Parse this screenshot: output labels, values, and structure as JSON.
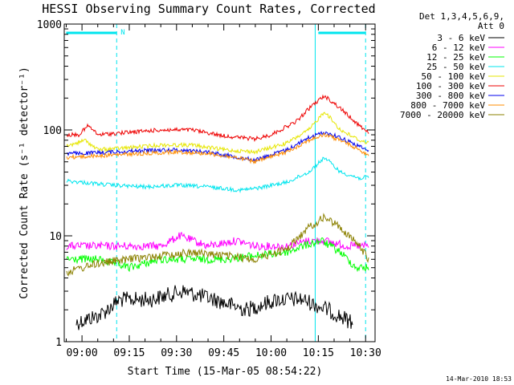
{
  "chart_data": {
    "type": "line",
    "title": "HESSI Observing Summary Count Rates, Corrected",
    "xlabel": "Start Time (15-Mar-05 08:54:22)",
    "ylabel": "Corrected Count Rate (s⁻¹ detector⁻¹)",
    "y_scale": "log",
    "ylim": [
      1,
      1000
    ],
    "y_ticks": [
      1,
      10,
      100,
      1000
    ],
    "y_tick_labels": [
      "1",
      "10",
      "100",
      "1000"
    ],
    "xlim": [
      "08:54:22",
      "10:33:00"
    ],
    "x_ticks": [
      "09:00",
      "09:15",
      "09:30",
      "09:45",
      "10:00",
      "10:15",
      "10:30"
    ],
    "legend": {
      "title_lines": [
        "Det 1,3,4,5,6,9,",
        "Att 0"
      ],
      "placement": "right-outside"
    },
    "annotations": {
      "night_label": "N",
      "bars": [
        {
          "start": "08:55",
          "end": "09:11",
          "color": "#00e5ee"
        },
        {
          "start": "10:15",
          "end": "10:30",
          "color": "#00e5ee"
        }
      ],
      "vlines": [
        {
          "time": "09:11",
          "style": "dashed",
          "color": "#00e5ee"
        },
        {
          "time": "10:14",
          "style": "solid",
          "color": "#00e5ee"
        },
        {
          "time": "10:30",
          "style": "dashed",
          "color": "#00e5ee"
        }
      ]
    },
    "series": [
      {
        "name": "3 - 6 keV",
        "color": "#000000",
        "x": [
          "08:58",
          "09:06",
          "09:12",
          "09:22",
          "09:32",
          "09:42",
          "09:52",
          "10:02",
          "10:10",
          "10:18",
          "10:26"
        ],
        "y": [
          1.5,
          1.8,
          2.5,
          2.5,
          3.0,
          2.5,
          2.0,
          2.5,
          2.5,
          2.0,
          1.5
        ]
      },
      {
        "name": "6 - 12 keV",
        "color": "#ff00ff",
        "x": [
          "08:55",
          "09:05",
          "09:15",
          "09:25",
          "09:31",
          "09:40",
          "09:49",
          "09:55",
          "10:05",
          "10:12",
          "10:17",
          "10:24",
          "10:31"
        ],
        "y": [
          8,
          8,
          8,
          8,
          10,
          8,
          9,
          8,
          8,
          9,
          9,
          8,
          8
        ]
      },
      {
        "name": "12 - 25 keV",
        "color": "#00ff00",
        "x": [
          "08:55",
          "09:05",
          "09:15",
          "09:25",
          "09:35",
          "09:45",
          "09:55",
          "10:05",
          "10:10",
          "10:16",
          "10:22",
          "10:27",
          "10:31"
        ],
        "y": [
          6,
          6,
          5,
          6,
          6,
          6,
          6.5,
          7,
          8,
          9,
          7,
          5,
          5
        ]
      },
      {
        "name": "25 - 50 keV",
        "color": "#00e5ee",
        "x": [
          "08:55",
          "09:00",
          "09:10",
          "09:20",
          "09:30",
          "09:40",
          "09:50",
          "09:55",
          "10:05",
          "10:12",
          "10:17",
          "10:22",
          "10:28",
          "10:31"
        ],
        "y": [
          33,
          32,
          30,
          29,
          30,
          29,
          27,
          28,
          32,
          40,
          55,
          40,
          35,
          36
        ]
      },
      {
        "name": "50 - 100 keV",
        "color": "#e6e600",
        "x": [
          "08:55",
          "09:01",
          "09:05",
          "09:15",
          "09:25",
          "09:35",
          "09:45",
          "09:55",
          "10:05",
          "10:12",
          "10:17",
          "10:22",
          "10:28",
          "10:31"
        ],
        "y": [
          70,
          80,
          65,
          68,
          72,
          72,
          65,
          62,
          75,
          100,
          150,
          100,
          80,
          75
        ]
      },
      {
        "name": "100 - 300 keV",
        "color": "#ee0000",
        "x": [
          "08:55",
          "08:59",
          "09:02",
          "09:05",
          "09:15",
          "09:25",
          "09:35",
          "09:45",
          "09:55",
          "10:00",
          "10:08",
          "10:13",
          "10:17",
          "10:22",
          "10:28",
          "10:31"
        ],
        "y": [
          90,
          90,
          110,
          90,
          95,
          100,
          100,
          88,
          82,
          90,
          120,
          170,
          210,
          160,
          110,
          95
        ]
      },
      {
        "name": "300 - 800 keV",
        "color": "#0000ee",
        "x": [
          "08:55",
          "09:00",
          "09:10",
          "09:20",
          "09:30",
          "09:40",
          "09:50",
          "09:55",
          "10:05",
          "10:12",
          "10:17",
          "10:22",
          "10:28",
          "10:31"
        ],
        "y": [
          60,
          60,
          62,
          64,
          65,
          62,
          55,
          52,
          65,
          85,
          95,
          85,
          70,
          63
        ]
      },
      {
        "name": "800 - 7000 keV",
        "color": "#ff8c00",
        "x": [
          "08:55",
          "09:00",
          "09:10",
          "09:20",
          "09:30",
          "09:40",
          "09:50",
          "09:55",
          "10:05",
          "10:12",
          "10:17",
          "10:22",
          "10:28",
          "10:31"
        ],
        "y": [
          55,
          56,
          58,
          60,
          62,
          60,
          54,
          50,
          62,
          80,
          90,
          80,
          65,
          58
        ]
      },
      {
        "name": "7000 - 20000 keV",
        "color": "#8b8000",
        "x": [
          "08:55",
          "09:05",
          "09:15",
          "09:25",
          "09:35",
          "09:45",
          "09:55",
          "10:05",
          "10:12",
          "10:17",
          "10:22",
          "10:28",
          "10:31"
        ],
        "y": [
          4.5,
          5.5,
          6,
          6.5,
          7,
          6.5,
          6,
          7.5,
          12,
          15,
          12,
          8,
          6
        ]
      }
    ]
  },
  "footer": {
    "timestamp": "14-Mar-2010 18:53"
  }
}
